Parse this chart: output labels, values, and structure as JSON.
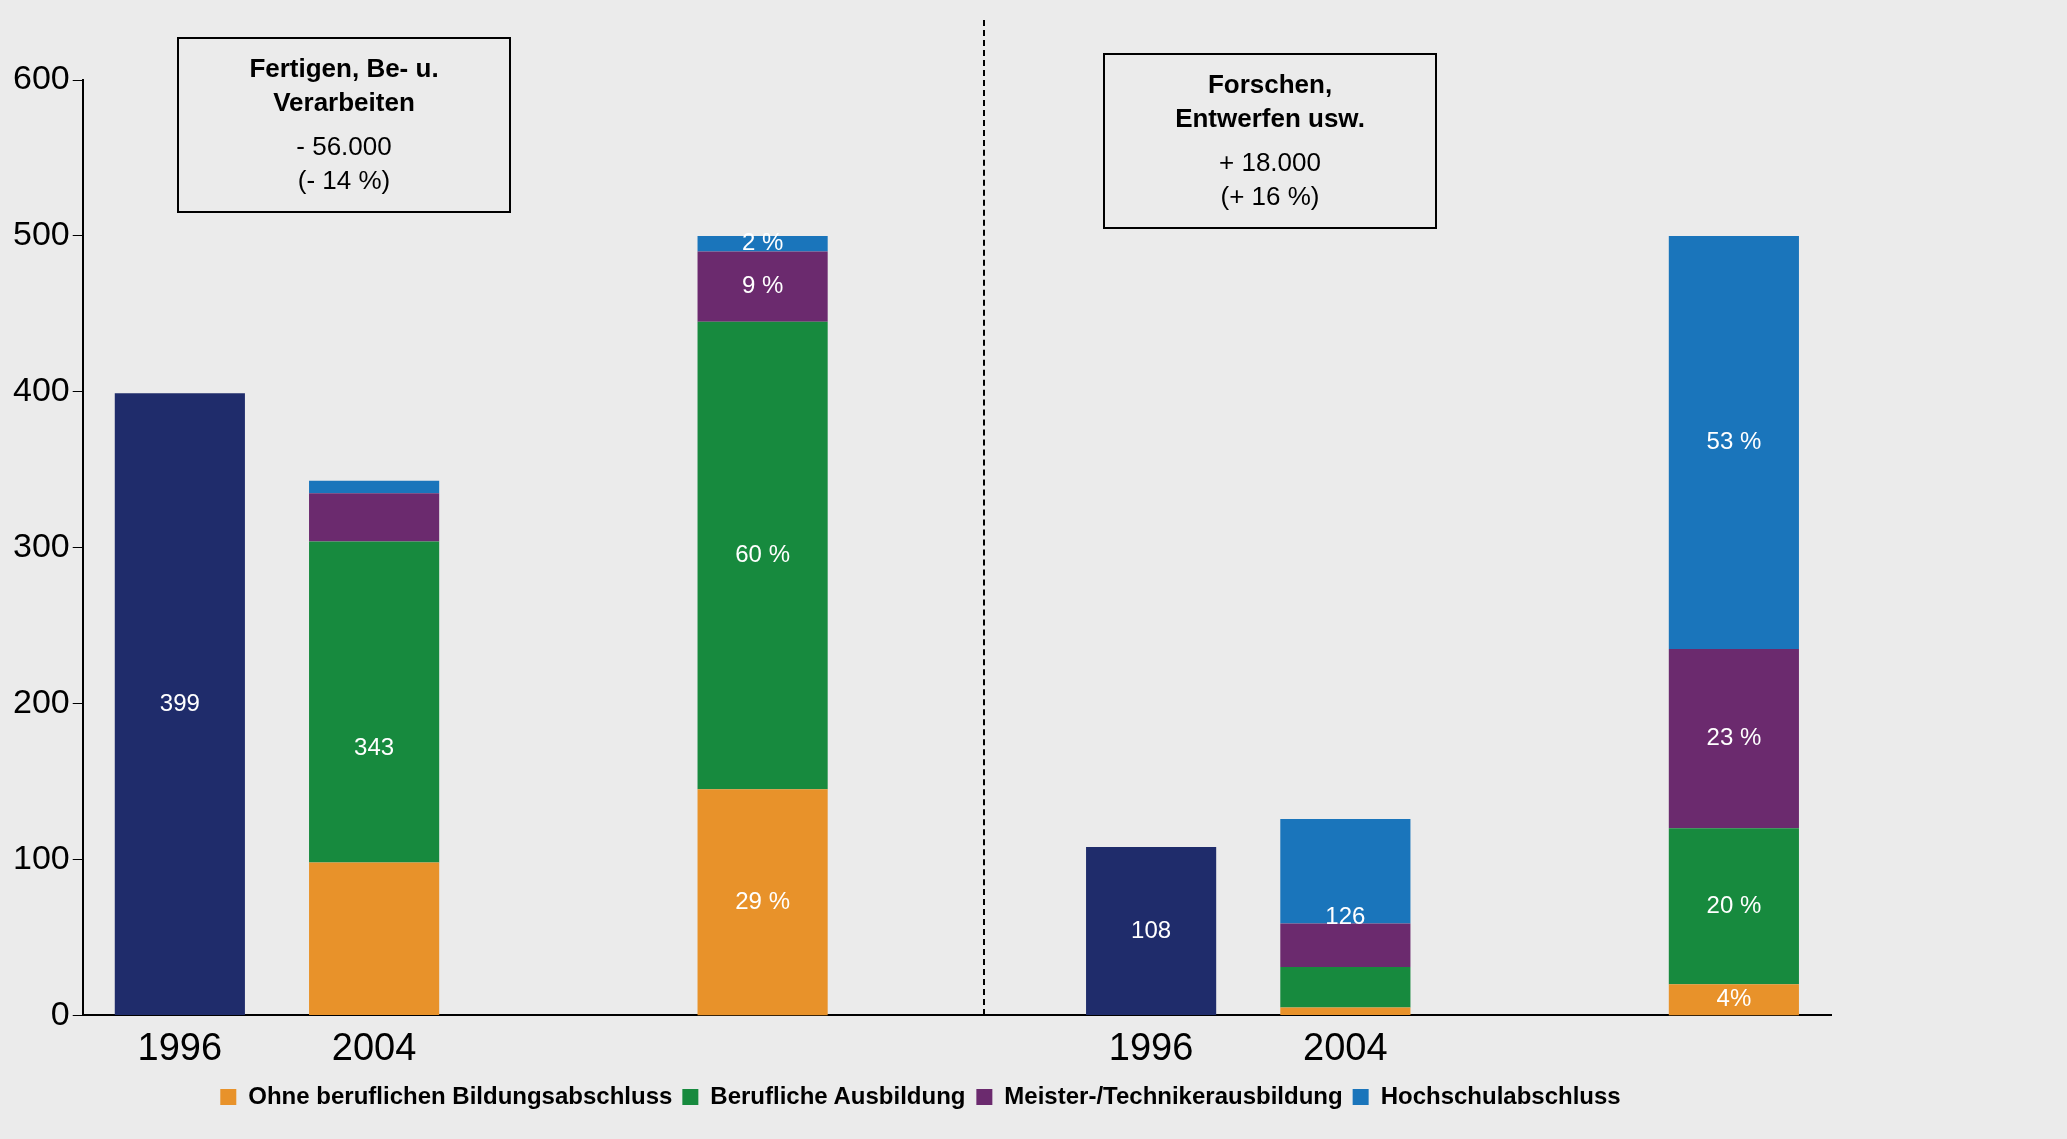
{
  "chart_data": {
    "type": "bar",
    "stacked": true,
    "categories": [
      "1996",
      "2004",
      null,
      null,
      null,
      "1996",
      "2004",
      null,
      null
    ],
    "series": [
      {
        "color": "#1f2c6b",
        "values": [
          399,
          null,
          null,
          null,
          null,
          108,
          null,
          null,
          null
        ],
        "value_labels": [
          "399",
          null,
          null,
          null,
          null,
          "108",
          null,
          null,
          null
        ]
      },
      {
        "name": "Ohne beruflichen Bildungsabschluss",
        "color": "#e8922a",
        "values": [
          null,
          98,
          null,
          null,
          null,
          null,
          5,
          null,
          null
        ]
      },
      {
        "name": "Berufliche Ausbildung",
        "color": "#178a3e",
        "values": [
          null,
          206,
          null,
          null,
          null,
          null,
          26,
          null,
          null
        ]
      },
      {
        "name": "Meister-/Technikerausbildung",
        "color": "#6b2a6e",
        "values": [
          null,
          31,
          null,
          null,
          null,
          null,
          28,
          null,
          null
        ]
      },
      {
        "name": "Hochschulabschluss",
        "color": "#1a75bb",
        "values": [
          null,
          8,
          null,
          null,
          null,
          null,
          67,
          null,
          null
        ]
      },
      {
        "axis": "y2",
        "color": "#e8922a",
        "values": [
          null,
          null,
          null,
          29,
          null,
          null,
          null,
          null,
          4
        ],
        "value_labels": [
          null,
          null,
          null,
          "29 %",
          null,
          null,
          null,
          null,
          "4%"
        ]
      },
      {
        "axis": "y2",
        "color": "#178a3e",
        "values": [
          null,
          null,
          null,
          60,
          null,
          null,
          null,
          null,
          20
        ],
        "value_labels": [
          null,
          null,
          null,
          "60 %",
          null,
          null,
          null,
          null,
          "20 %"
        ]
      },
      {
        "axis": "y2",
        "color": "#6b2a6e",
        "values": [
          null,
          null,
          null,
          9,
          null,
          null,
          null,
          null,
          23
        ],
        "value_labels": [
          null,
          null,
          null,
          "9 %",
          null,
          null,
          null,
          null,
          "23 %"
        ]
      },
      {
        "axis": "y2",
        "color": "#1a75bb",
        "values": [
          null,
          null,
          null,
          2,
          null,
          null,
          null,
          null,
          53
        ],
        "value_labels": [
          null,
          null,
          null,
          "2 %",
          null,
          null,
          null,
          null,
          "53 %"
        ]
      }
    ],
    "totals": [
      null,
      "343",
      null,
      null,
      null,
      null,
      "126",
      null,
      null
    ],
    "ylim": [
      0,
      600
    ],
    "yticks": [
      0,
      100,
      200,
      300,
      400,
      500,
      600
    ],
    "y2lim": [
      0,
      120
    ],
    "legend": "bottom",
    "annotations": [
      "Fertigen, Be- u. Verarbeiten",
      "- 56.000\n(- 14 %)",
      "Forschen,\nEntwerfen usw.",
      "+ 18.000\n(+ 16 %)"
    ]
  }
}
